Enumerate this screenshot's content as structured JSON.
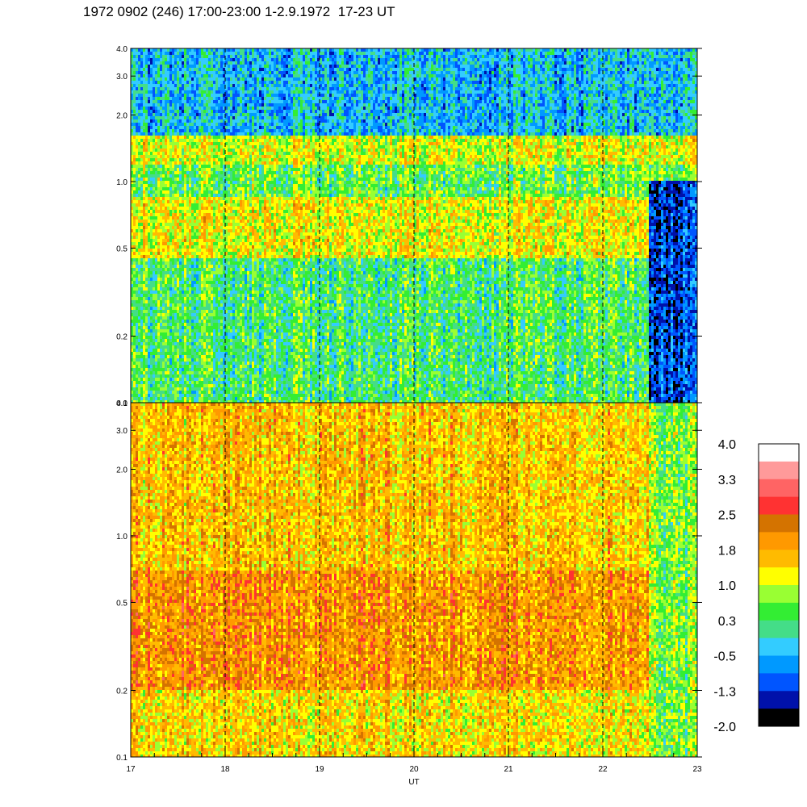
{
  "title": "1972 0902 (246) 17:00-23:00 1-2.9.1972  17-23 UT",
  "chart_data": {
    "type": "heatmap",
    "title": "1972 0902 (246) 17:00-23:00 1-2.9.1972  17-23 UT",
    "xlabel": "UT",
    "x_range": [
      17,
      23
    ],
    "x_ticks": [
      "17",
      "18",
      "19",
      "20",
      "21",
      "22",
      "23"
    ],
    "hour_markers": [
      18,
      19,
      20,
      21,
      22
    ],
    "panels": [
      {
        "name": "upper",
        "y_scale": "log",
        "y_range": [
          0.1,
          4.0
        ],
        "y_ticks": [
          {
            "value": 4.0,
            "label": "4.0"
          },
          {
            "value": 3.0,
            "label": "3.0"
          },
          {
            "value": 2.0,
            "label": "2.0"
          },
          {
            "value": 1.0,
            "label": "1.0"
          },
          {
            "value": 0.5,
            "label": "0.5"
          },
          {
            "value": 0.2,
            "label": "0.2"
          },
          {
            "value": 0.1,
            "label": "0.1"
          }
        ],
        "description_bands": [
          {
            "y_range": [
              0.1,
              0.45
            ],
            "level": 0.3
          },
          {
            "y_range": [
              0.45,
              0.85
            ],
            "level": 1.2
          },
          {
            "y_range": [
              0.85,
              1.2
            ],
            "level": 0.5
          },
          {
            "y_range": [
              1.2,
              1.6
            ],
            "level": 1.1
          },
          {
            "y_range": [
              1.6,
              4.0
            ],
            "level": -0.4
          }
        ],
        "low_region": {
          "x_range": [
            22.5,
            23.0
          ],
          "y_range": [
            0.1,
            1.0
          ],
          "level": -1.2
        }
      },
      {
        "name": "lower",
        "y_scale": "log",
        "y_range": [
          0.1,
          4.0
        ],
        "y_ticks": [
          {
            "value": 4.0,
            "label": "4.0"
          },
          {
            "value": 3.0,
            "label": "3.0"
          },
          {
            "value": 2.0,
            "label": "2.0"
          },
          {
            "value": 1.0,
            "label": "1.0"
          },
          {
            "value": 0.5,
            "label": "0.5"
          },
          {
            "value": 0.2,
            "label": "0.2"
          },
          {
            "value": 0.1,
            "label": "0.1"
          }
        ],
        "description_bands": [
          {
            "y_range": [
              0.1,
              0.2
            ],
            "level": 1.4
          },
          {
            "y_range": [
              0.2,
              0.7
            ],
            "level": 2.0
          },
          {
            "y_range": [
              0.7,
              4.0
            ],
            "level": 1.6
          }
        ],
        "low_region": {
          "x_range": [
            22.5,
            23.0
          ],
          "y_range": [
            0.1,
            4.0
          ],
          "level": 0.6
        }
      }
    ],
    "colorbar": {
      "min": -2.0,
      "max": 4.0,
      "labels": [
        "4.0",
        "3.3",
        "2.5",
        "1.8",
        "1.0",
        "0.3",
        "-0.5",
        "-1.3",
        "-2.0"
      ],
      "colors_top_to_bottom": [
        "#ffffff",
        "#ff9a9a",
        "#ff6464",
        "#ff3232",
        "#d47300",
        "#ff9900",
        "#ffbb00",
        "#ffff00",
        "#99ff33",
        "#33ee33",
        "#44dd88",
        "#33ccff",
        "#0099ff",
        "#0055ff",
        "#0011aa",
        "#000000"
      ]
    }
  }
}
